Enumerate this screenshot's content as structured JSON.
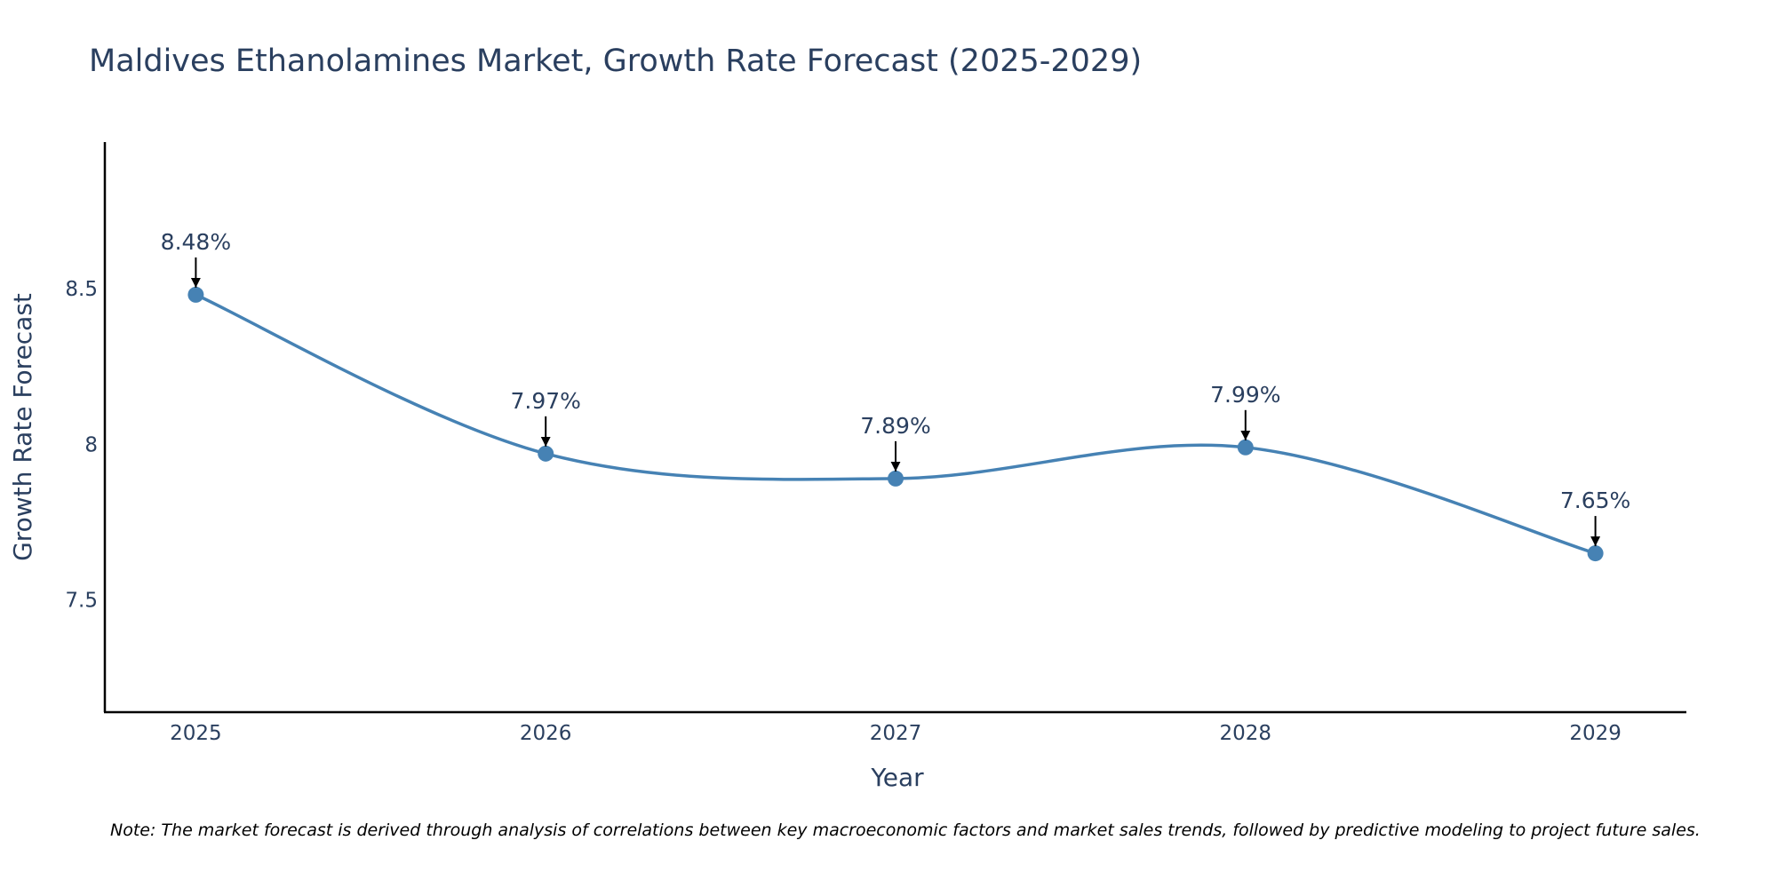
{
  "chart_data": {
    "type": "line",
    "title": "Maldives Ethanolamines Market, Growth Rate Forecast (2025-2029)",
    "xlabel": "Year",
    "ylabel": "Growth Rate Forecast",
    "categories": [
      "2025",
      "2026",
      "2027",
      "2028",
      "2029"
    ],
    "series": [
      {
        "name": "Growth Rate Forecast",
        "values": [
          8.48,
          7.97,
          7.89,
          7.99,
          7.65
        ],
        "labels": [
          "8.48%",
          "7.97%",
          "7.89%",
          "7.99%",
          "7.65%"
        ],
        "color": "#4682b4"
      }
    ],
    "ylim": [
      7.14,
      8.97
    ],
    "yticks": [
      7.5,
      8,
      8.5
    ],
    "ytick_labels": [
      "7.5",
      "8",
      "8.5"
    ],
    "xlim": [
      -0.26,
      4.26
    ],
    "grid": false,
    "line_shape": "spline",
    "annotation_arrow_color": "#000000",
    "axis_color": "#000000",
    "note": "Note: The market forecast is derived through analysis of correlations between key macroeconomic factors and market sales trends, followed by predictive modeling to project future sales."
  }
}
